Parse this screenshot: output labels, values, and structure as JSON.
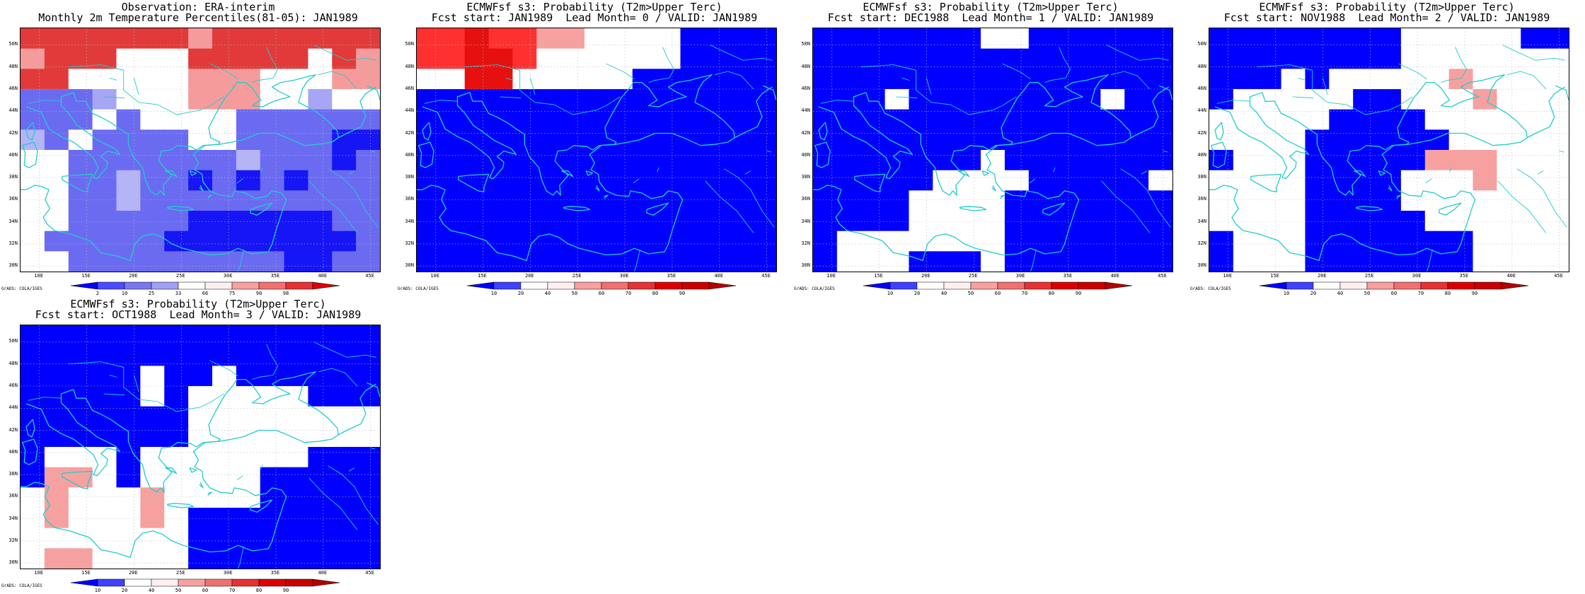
{
  "credit": "GrADS: COLA/IGES",
  "lat_labels": [
    "50N",
    "48N",
    "46N",
    "44N",
    "42N",
    "40N",
    "38N",
    "36N",
    "34N",
    "32N",
    "30N"
  ],
  "lon_labels": [
    "10E",
    "15E",
    "20E",
    "25E",
    "30E",
    "35E",
    "40E",
    "45E"
  ],
  "colors": {
    "coast": "#22cccc",
    "grid": "#bbbbbb",
    "obs_scale": [
      "#0000ff",
      "#4b4bff",
      "#7878f0",
      "#a0a0f5",
      "#ffffff",
      "#fff0f0",
      "#f8a0a0",
      "#f07070",
      "#e63232",
      "#dc0000"
    ],
    "prob_scale": [
      "#0000ff",
      "#4040ff",
      "#ffffff",
      "#fff0f0",
      "#f8a0a0",
      "#f07070",
      "#e63232",
      "#dc0000",
      "#c80000",
      "#b40000"
    ]
  },
  "panels": [
    {
      "id": "observation",
      "title_line1": "Observation: ERA-interim",
      "title_line2": "Monthly 2m Temperature Percentiles(81-05): JAN1989",
      "colorbar_labels": [
        "2",
        "10",
        "25",
        "33",
        "66",
        "75",
        "90",
        "98"
      ],
      "colorbar_kind": "obs",
      "grid": [
        "RRRRRRRrRRRRRRR",
        "rRRRWWWRRRRRWRr",
        "RRWWWWWrrrWWWrr",
        "bbbaWWWrrrWWaWW",
        "bbbWbWWWWbbbbbb",
        "cbWbbbbWWbbbbBB",
        "WWbbbbbbbcbbbBb",
        "WWbbcbbBbBbBbbb",
        "WWbbcbbbbbbbbbb",
        "WWbbbbbBBBBBBbb",
        "WbbbbbBBBBBBBBb",
        "WWbbbbbbbbbBBbb"
      ]
    },
    {
      "id": "lead0",
      "title_line1": "ECMWFsf s3: Probability (T2m>Upper Terc)",
      "title_line2": "Fcst start: JAN1989  Lead Month= 0 / VALID: JAN1989",
      "colorbar_labels": [
        "10",
        "20",
        "40",
        "50",
        "60",
        "70",
        "80",
        "90"
      ],
      "colorbar_kind": "prob",
      "grid": [
        "RRxRRrrWWWWBBBB",
        "RRxxRWWWWWWBBBB",
        "WWxxWWWWWBBBBBB",
        "BBBBBBBBBBBBBBB",
        "BBBBBBBBBBBBBBB",
        "BBBBBBBBBBBBBBB",
        "BBBBBBBBBBBBBBB",
        "BBBBBBBBBBBBBBB",
        "BBBBBBBBBBBBBBB",
        "BBBBBBBBBBBBBBB",
        "BBBBBBBBBBBBBBB",
        "BBBBBBBBBBBBBBB"
      ]
    },
    {
      "id": "lead1",
      "title_line1": "ECMWFsf s3: Probability (T2m>Upper Terc)",
      "title_line2": "Fcst start: DEC1988  Lead Month= 1 / VALID: JAN1989",
      "colorbar_labels": [
        "10",
        "20",
        "40",
        "50",
        "60",
        "70",
        "80",
        "90"
      ],
      "colorbar_kind": "prob",
      "grid": [
        "BBBBBBBWWBBBBBB",
        "BBBBBBBBBBBBBBB",
        "BBBBBBBBBBBBBBB",
        "BBBWBBBBBBBBWBB",
        "BBBBBBBBBBBBBBB",
        "BBBBBBBBBBBBBBB",
        "BBBBBBBWBBBBBBB",
        "BBBBBWWWWBBBBBW",
        "BBBBWWWWBBBBBBB",
        "BBBBWWWWBBBBBBB",
        "BWWWWWWWBBBBBBB",
        "BWWWBBBWBBBBBBB"
      ]
    },
    {
      "id": "lead2",
      "title_line1": "ECMWFsf s3: Probability (T2m>Upper Terc)",
      "title_line2": "Fcst start: NOV1988  Lead Month= 2 / VALID: JAN1989",
      "colorbar_labels": [
        "10",
        "20",
        "40",
        "50",
        "60",
        "70",
        "80",
        "90"
      ],
      "colorbar_kind": "prob",
      "grid": [
        "BBBBBBBBWWWWWBB",
        "BBBBBBBBWWWWWWW",
        "BBBWBWWWWWrWWWW",
        "BWWWWWBBWWWrWWW",
        "WWWWWBBBBWWWWWW",
        "WWWWBBBBBBWWWWW",
        "BWWWBBBBBrrrWWW",
        "WWWWBBBBWWWrWWW",
        "WWWWBBBBWWWWWWW",
        "WWWWBBBBBWWWWWW",
        "BWWWBBBBBBBWWWW",
        "BWWWBBBBBBBWWWW"
      ]
    },
    {
      "id": "lead3",
      "title_line1": "ECMWFsf s3: Probability (T2m>Upper Terc)",
      "title_line2": "Fcst start: OCT1988  Lead Month= 3 / VALID: JAN1989",
      "colorbar_labels": [
        "10",
        "20",
        "40",
        "50",
        "60",
        "70",
        "80",
        "90"
      ],
      "colorbar_kind": "prob",
      "grid": [
        "BBBBBBBBBBBBBBB",
        "BBBBBBBBBBBBBBB",
        "BBBBBWBBWBBBBBB",
        "BBBBBWBWWWWWBBB",
        "BBBBBBBWWWWWWWW",
        "BBBBBBBWWWWWWWW",
        "BWWWBWWWWWWWBBB",
        "BrrWBWWWWWBBBBB",
        "WrWWWrWWWWBBBBB",
        "WrWWWrWBBBBBBBB",
        "WWWWWWWBBBBBBBB",
        "WrrWWWWBBBBBBBB"
      ]
    }
  ]
}
